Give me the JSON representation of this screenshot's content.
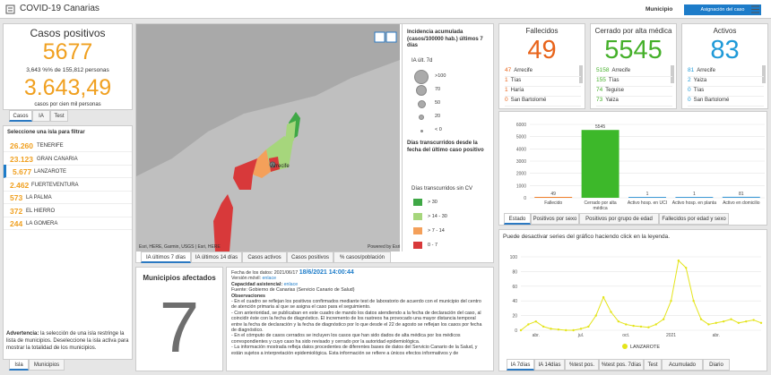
{
  "header": {
    "title": "COVID-19 Canarias",
    "filter_label": "Municipio",
    "button": "Asignación del caso"
  },
  "summary": {
    "title": "Casos positivos",
    "total": "5677",
    "ratio": "3,643 %% de 155,812 personas",
    "rate": "3.643,49",
    "rate_label": "casos por cien mil personas",
    "tabs": [
      "Casos",
      "IA",
      "Test"
    ]
  },
  "islands": {
    "title": "Seleccione una isla para filtrar",
    "rows": [
      {
        "count": "26.260",
        "name": "TENERIFE"
      },
      {
        "count": "23.123",
        "name": "GRAN CANARIA"
      },
      {
        "count": "5.677",
        "name": "LANZAROTE"
      },
      {
        "count": "2.462",
        "name": "FUERTEVENTURA"
      },
      {
        "count": "573",
        "name": "LA PALMA"
      },
      {
        "count": "372",
        "name": "EL HIERRO"
      },
      {
        "count": "244",
        "name": "LA GOMERA"
      }
    ]
  },
  "warning": {
    "lead": "Advertencia:",
    "text": " la selección de una isla restringe la lista de municipios. Deseleccione la isla activa para mostrar la totalidad de los municipios."
  },
  "left_tabs": [
    "Isla",
    "Municipios"
  ],
  "map": {
    "place": "Arrecife",
    "attribution": "Esri, HERE, Garmin, USGS | Esri, HERE",
    "powered": "Powered by Esri",
    "legend1": {
      "title": "Incidencia acumulada (casos/100000 hab.) últimos 7 días",
      "subtitle": "IA últ. 7d",
      "items": [
        ">100",
        "70",
        "50",
        "20",
        "< 0"
      ]
    },
    "legend2": {
      "title": "Días transcurridos desde la fecha del último caso positivo",
      "subtitle": "Días transcurridos sin CV",
      "items": [
        {
          "label": "> 30",
          "color": "#3fa846"
        },
        {
          "label": "> 14 - 30",
          "color": "#a6d67c"
        },
        {
          "label": "> 7 - 14",
          "color": "#f4a05a"
        },
        {
          "label": "0 - 7",
          "color": "#d8393a"
        }
      ]
    },
    "tabs": [
      "IA últimos 7 días",
      "IA últimos 14 días",
      "Casos activos",
      "Casos positivos",
      "% casos/población"
    ]
  },
  "municipios": {
    "title": "Municipios afectados",
    "value": "7"
  },
  "notes": {
    "date_label": "Fecha de los datos: 2021/06/17 ",
    "date": "18/6/2021 14:00:44",
    "mobile_label": "Versión móvil: ",
    "mobile_link": "enlace",
    "capacity_label": "Capacidad asistencial: ",
    "capacity_link": "enlace",
    "source": "Fuente: Gobierno de Canarias (Servicio Canario de Salud)",
    "obs_title": "Observaciones",
    "bullets": [
      "- En el cuadro se reflejan los positivos confirmados mediante test de laboratorio de acuerdo con el municipio del centro de atención primaria al que se asigna el caso para el seguimiento.",
      "- Con anterioridad, se publicaban en este cuadro de mando los datos atendiendo a la fecha de declaración del caso, al coincidir éste con la fecha de diagnóstico. El incremento de los rastreos ha provocado una mayor distancia temporal entre la fecha de declaración y la fecha de diagnóstico por lo que desde el 22 de agosto se reflejan los casos por fecha de diagnóstico.",
      "- En el cómputo de casos cerrados se incluyen los casos que han sido dados de alta médica por los médicos correspondientes y cuyo caso ha sido revisado y cerrado por la autoridad epidemiológica.",
      "- La información mostrada refleja datos procedentes de diferentes bases de datos del Servicio Canario de la Salud, y están sujetos a interpretación epidemiológica. Esta información se refiere a únicos efectos informativos y de"
    ]
  },
  "stats": [
    {
      "title": "Fallecidos",
      "value": "49",
      "color": "#e8641b",
      "rows": [
        {
          "count": "47",
          "name": "Arrecife"
        },
        {
          "count": "1",
          "name": "Tías"
        },
        {
          "count": "1",
          "name": "Haría"
        },
        {
          "count": "0",
          "name": "San Bartolomé"
        }
      ]
    },
    {
      "title": "Cerrado por alta médica",
      "value": "5545",
      "color": "#45b02a",
      "rows": [
        {
          "count": "5158",
          "name": "Arrecife"
        },
        {
          "count": "155",
          "name": "Tías"
        },
        {
          "count": "74",
          "name": "Teguise"
        },
        {
          "count": "73",
          "name": "Yaiza"
        }
      ]
    },
    {
      "title": "Activos",
      "value": "83",
      "color": "#1f9ad8",
      "rows": [
        {
          "count": "81",
          "name": "Arrecife"
        },
        {
          "count": "2",
          "name": "Yaiza"
        },
        {
          "count": "0",
          "name": "Tías"
        },
        {
          "count": "0",
          "name": "San Bartolomé"
        }
      ]
    }
  ],
  "chart_data": [
    {
      "type": "bar",
      "categories": [
        "Fallecido",
        "Cerrado por alta médica",
        "Activo hosp. en UCI",
        "Activo hosp. en planta",
        "Activo en domicilio"
      ],
      "values": [
        49,
        5545,
        1,
        1,
        81
      ],
      "colors": [
        "#f07e2a",
        "#3db82a",
        "#3d9ad6",
        "#3d9ad6",
        "#3d9ad6"
      ],
      "ylim": [
        0,
        6000
      ],
      "yticks": [
        0,
        1000,
        2000,
        3000,
        4000,
        5000,
        6000
      ],
      "grid": true,
      "tabs": [
        "Estado",
        "Positivos por sexo",
        "Positivos por grupo de edad",
        "Fallecidos por edad y sexo"
      ]
    },
    {
      "type": "line",
      "subtitle": "Puede desactivar series del gráfico haciendo click en la leyenda.",
      "categories": [
        null,
        null,
        "abr.",
        null,
        null,
        null,
        null,
        null,
        "jul.",
        null,
        null,
        null,
        null,
        null,
        "oct.",
        null,
        null,
        null,
        null,
        null,
        "2021",
        null,
        null,
        null,
        null,
        null,
        "abr.",
        null,
        null,
        null,
        null,
        null,
        null
      ],
      "series": [
        {
          "name": "LANZAROTE",
          "color": "#e4e41a",
          "values": [
            0,
            8,
            12,
            5,
            2,
            1,
            0,
            0,
            2,
            5,
            20,
            45,
            25,
            12,
            8,
            6,
            5,
            4,
            8,
            15,
            40,
            95,
            85,
            40,
            15,
            8,
            10,
            12,
            15,
            10,
            12,
            14,
            10
          ]
        }
      ],
      "ylim": [
        0,
        100
      ],
      "yticks": [
        0,
        20,
        40,
        60,
        80,
        100
      ],
      "grid": true,
      "legend": "bottom",
      "tabs": [
        "IA 7días",
        "IA 14días",
        "%test pos.",
        "%test pos. 7días",
        "Test",
        "Acumulado",
        "Diario"
      ]
    }
  ]
}
